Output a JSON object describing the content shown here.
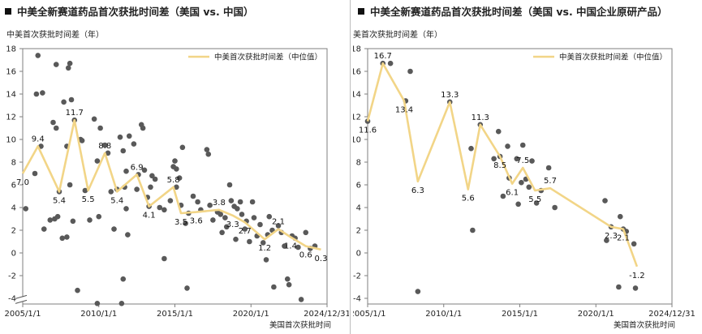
{
  "charts": [
    {
      "title": "中美全新赛道药品首次获批时间差（美国 vs. 中国）",
      "chart_data": {
        "type": "scatter",
        "ylabel": "中美首次获批时间差（年）",
        "xlabel": "美国首次获批时间",
        "y_ticks": [
          -4,
          -2,
          0,
          2,
          4,
          6,
          8,
          10,
          12,
          14,
          16,
          18
        ],
        "ylim": [
          -4.5,
          18
        ],
        "axis_break": true,
        "x_tick_labels": [
          "2005/1/1",
          "2010/1/1",
          "2015/1/1",
          "2020/1/1",
          "2024/12/31"
        ],
        "x_tick_values": [
          2005.0,
          2010.0,
          2015.0,
          2020.0,
          2025.0
        ],
        "xlim": [
          2005.0,
          2025.0
        ],
        "legend": "中美首次获批时间差（中位值）",
        "legend_position": "top-right",
        "colors": {
          "points": "#595959",
          "median": "#f2d587"
        },
        "median_series": [
          {
            "x": 2005.0,
            "y": 7.0,
            "label": "7.0"
          },
          {
            "x": 2006.0,
            "y": 9.4,
            "label": "9.4"
          },
          {
            "x": 2007.4,
            "y": 5.4,
            "label": "5.4"
          },
          {
            "x": 2008.4,
            "y": 11.7,
            "label": "11.7"
          },
          {
            "x": 2009.3,
            "y": 5.5,
            "label": "5.5"
          },
          {
            "x": 2010.4,
            "y": 8.8,
            "label": "8.8"
          },
          {
            "x": 2011.2,
            "y": 5.4,
            "label": "5.4"
          },
          {
            "x": 2012.5,
            "y": 6.9,
            "label": "6.9"
          },
          {
            "x": 2013.3,
            "y": 4.1,
            "label": "4.1"
          },
          {
            "x": 2014.9,
            "y": 5.8,
            "label": "5.8"
          },
          {
            "x": 2015.4,
            "y": 3.5,
            "label": "3.5"
          },
          {
            "x": 2016.4,
            "y": 3.6,
            "label": "3.6"
          },
          {
            "x": 2017.9,
            "y": 3.8,
            "label": "3.8"
          },
          {
            "x": 2018.8,
            "y": 3.3,
            "label": "3.3"
          },
          {
            "x": 2019.6,
            "y": 2.7,
            "label": "2.7"
          },
          {
            "x": 2020.9,
            "y": 1.2,
            "label": "1.2"
          },
          {
            "x": 2021.8,
            "y": 2.1,
            "label": "2.1"
          },
          {
            "x": 2022.6,
            "y": 1.4,
            "label": "1.4"
          },
          {
            "x": 2023.6,
            "y": 0.6,
            "label": "0.6"
          },
          {
            "x": 2024.6,
            "y": 0.3,
            "label": "0.3"
          }
        ],
        "points": [
          {
            "x": 2005.2,
            "y": 3.9
          },
          {
            "x": 2005.8,
            "y": 7.0
          },
          {
            "x": 2006.0,
            "y": 17.4
          },
          {
            "x": 2005.9,
            "y": 14.0
          },
          {
            "x": 2006.3,
            "y": 14.1
          },
          {
            "x": 2006.2,
            "y": 9.4
          },
          {
            "x": 2006.4,
            "y": 2.1
          },
          {
            "x": 2006.8,
            "y": 2.9
          },
          {
            "x": 2007.1,
            "y": 3.0
          },
          {
            "x": 2007.3,
            "y": 3.2
          },
          {
            "x": 2007.2,
            "y": 16.6
          },
          {
            "x": 2007.0,
            "y": 11.5
          },
          {
            "x": 2007.2,
            "y": 11.0
          },
          {
            "x": 2007.4,
            "y": 5.4
          },
          {
            "x": 2007.6,
            "y": 1.3
          },
          {
            "x": 2007.7,
            "y": 13.3
          },
          {
            "x": 2008.0,
            "y": 16.3
          },
          {
            "x": 2008.1,
            "y": 16.7
          },
          {
            "x": 2008.2,
            "y": 13.5
          },
          {
            "x": 2007.9,
            "y": 9.4
          },
          {
            "x": 2007.9,
            "y": 1.4
          },
          {
            "x": 2008.1,
            "y": 6.0
          },
          {
            "x": 2008.3,
            "y": 2.8
          },
          {
            "x": 2008.4,
            "y": 11.7
          },
          {
            "x": 2008.6,
            "y": -3.3
          },
          {
            "x": 2008.8,
            "y": 10.0
          },
          {
            "x": 2008.9,
            "y": 9.9
          },
          {
            "x": 2009.1,
            "y": 5.5
          },
          {
            "x": 2009.4,
            "y": 2.9
          },
          {
            "x": 2009.7,
            "y": 11.8
          },
          {
            "x": 2010.1,
            "y": 11.0
          },
          {
            "x": 2009.9,
            "y": 8.1
          },
          {
            "x": 2010.0,
            "y": 3.2
          },
          {
            "x": 2009.9,
            "y": -4.8
          },
          {
            "x": 2010.4,
            "y": 9.5
          },
          {
            "x": 2010.6,
            "y": 8.8
          },
          {
            "x": 2010.8,
            "y": 5.4
          },
          {
            "x": 2011.2,
            "y": 5.6
          },
          {
            "x": 2011.0,
            "y": 2.1
          },
          {
            "x": 2011.5,
            "y": -5.7
          },
          {
            "x": 2011.4,
            "y": 10.2
          },
          {
            "x": 2011.6,
            "y": 9.0
          },
          {
            "x": 2011.8,
            "y": 7.2
          },
          {
            "x": 2011.7,
            "y": 5.8
          },
          {
            "x": 2011.8,
            "y": 3.9
          },
          {
            "x": 2011.9,
            "y": 1.6
          },
          {
            "x": 2011.6,
            "y": -2.3
          },
          {
            "x": 2012.0,
            "y": 10.3
          },
          {
            "x": 2012.3,
            "y": 9.6
          },
          {
            "x": 2012.5,
            "y": 5.6
          },
          {
            "x": 2012.6,
            "y": 6.9
          },
          {
            "x": 2012.8,
            "y": 11.3
          },
          {
            "x": 2012.9,
            "y": 11.0
          },
          {
            "x": 2013.0,
            "y": 7.3
          },
          {
            "x": 2013.2,
            "y": 4.9
          },
          {
            "x": 2013.3,
            "y": 4.1
          },
          {
            "x": 2013.5,
            "y": 6.8
          },
          {
            "x": 2013.7,
            "y": 6.5
          },
          {
            "x": 2013.4,
            "y": 5.8
          },
          {
            "x": 2014.0,
            "y": 4.0
          },
          {
            "x": 2014.3,
            "y": 3.8
          },
          {
            "x": 2014.7,
            "y": 4.6
          },
          {
            "x": 2014.3,
            "y": -0.5
          },
          {
            "x": 2015.0,
            "y": 8.1
          },
          {
            "x": 2015.1,
            "y": 7.4
          },
          {
            "x": 2015.3,
            "y": 6.6
          },
          {
            "x": 2014.9,
            "y": 7.6
          },
          {
            "x": 2015.1,
            "y": 5.8
          },
          {
            "x": 2015.4,
            "y": 4.2
          },
          {
            "x": 2015.5,
            "y": 9.3
          },
          {
            "x": 2015.7,
            "y": 2.6
          },
          {
            "x": 2015.8,
            "y": -3.1
          },
          {
            "x": 2015.9,
            "y": 3.5
          },
          {
            "x": 2016.2,
            "y": 5.0
          },
          {
            "x": 2016.5,
            "y": 4.5
          },
          {
            "x": 2016.7,
            "y": 3.8
          },
          {
            "x": 2017.1,
            "y": 9.1
          },
          {
            "x": 2017.2,
            "y": 8.7
          },
          {
            "x": 2017.3,
            "y": 4.2
          },
          {
            "x": 2017.5,
            "y": 2.9
          },
          {
            "x": 2017.8,
            "y": 3.6
          },
          {
            "x": 2018.0,
            "y": 3.4
          },
          {
            "x": 2018.1,
            "y": 1.8
          },
          {
            "x": 2018.3,
            "y": 3.1
          },
          {
            "x": 2018.4,
            "y": 2.3
          },
          {
            "x": 2018.6,
            "y": 6.0
          },
          {
            "x": 2018.7,
            "y": 4.6
          },
          {
            "x": 2018.9,
            "y": 4.1
          },
          {
            "x": 2019.0,
            "y": 1.2
          },
          {
            "x": 2019.1,
            "y": 3.9
          },
          {
            "x": 2019.3,
            "y": 4.5
          },
          {
            "x": 2019.4,
            "y": 3.4
          },
          {
            "x": 2019.6,
            "y": 2.1
          },
          {
            "x": 2019.7,
            "y": 2.8
          },
          {
            "x": 2019.9,
            "y": 1.0
          },
          {
            "x": 2020.1,
            "y": 4.5
          },
          {
            "x": 2020.2,
            "y": 3.1
          },
          {
            "x": 2020.4,
            "y": 1.5
          },
          {
            "x": 2020.6,
            "y": 2.5
          },
          {
            "x": 2020.8,
            "y": 0.9
          },
          {
            "x": 2021.0,
            "y": -0.6
          },
          {
            "x": 2021.1,
            "y": 1.6
          },
          {
            "x": 2021.2,
            "y": 3.2
          },
          {
            "x": 2021.4,
            "y": 2.0
          },
          {
            "x": 2021.5,
            "y": -3.0
          },
          {
            "x": 2021.8,
            "y": 2.4
          },
          {
            "x": 2022.0,
            "y": 1.8
          },
          {
            "x": 2022.2,
            "y": 0.6
          },
          {
            "x": 2022.4,
            "y": -2.3
          },
          {
            "x": 2022.5,
            "y": -2.8
          },
          {
            "x": 2022.7,
            "y": 1.5
          },
          {
            "x": 2022.9,
            "y": 1.3
          },
          {
            "x": 2023.1,
            "y": 0.5
          },
          {
            "x": 2023.3,
            "y": -4.1
          },
          {
            "x": 2023.6,
            "y": 1.8
          },
          {
            "x": 2023.9,
            "y": 0.4
          },
          {
            "x": 2024.2,
            "y": 0.6
          }
        ]
      }
    },
    {
      "title": "中美全新赛道药品首次获批时间差（美国 vs. 中国企业原研产品）",
      "chart_data": {
        "type": "scatter",
        "ylabel": "中美首次获批时间差（年）",
        "xlabel": "美国首次获批时间",
        "y_ticks": [
          -4,
          -2,
          0,
          2,
          4,
          6,
          8,
          10,
          12,
          14,
          16,
          18
        ],
        "ylim": [
          -4.5,
          18
        ],
        "axis_break": false,
        "x_tick_labels": [
          "2005/1/1",
          "2010/1/1",
          "2015/1/1",
          "2020/1/1",
          "2024/12/31"
        ],
        "x_tick_values": [
          2005.0,
          2010.0,
          2015.0,
          2020.0,
          2025.0
        ],
        "xlim": [
          2005.0,
          2025.0
        ],
        "legend": "中美首次获批时间差（中位值）",
        "legend_position": "top-right",
        "colors": {
          "points": "#595959",
          "median": "#f2d587"
        },
        "median_series": [
          {
            "x": 2005.0,
            "y": 11.6,
            "label": "11.6"
          },
          {
            "x": 2006.0,
            "y": 16.7,
            "label": "16.7"
          },
          {
            "x": 2007.4,
            "y": 13.4,
            "label": "13.4"
          },
          {
            "x": 2008.3,
            "y": 6.3,
            "label": "6.3"
          },
          {
            "x": 2010.4,
            "y": 13.3,
            "label": "13.3"
          },
          {
            "x": 2011.6,
            "y": 5.6,
            "label": "5.6"
          },
          {
            "x": 2012.4,
            "y": 11.3,
            "label": "11.3"
          },
          {
            "x": 2013.7,
            "y": 8.5,
            "label": "8.5"
          },
          {
            "x": 2014.5,
            "y": 6.1,
            "label": "6.1"
          },
          {
            "x": 2015.2,
            "y": 7.5,
            "label": "7.5"
          },
          {
            "x": 2016.0,
            "y": 5.5,
            "label": "5.5"
          },
          {
            "x": 2017.0,
            "y": 5.7,
            "label": "5.7"
          },
          {
            "x": 2021.0,
            "y": 2.3,
            "label": "2.3"
          },
          {
            "x": 2021.8,
            "y": 2.1,
            "label": "2.1"
          },
          {
            "x": 2022.7,
            "y": -1.2,
            "label": "-1.2"
          }
        ],
        "points": [
          {
            "x": 2005.0,
            "y": 11.6
          },
          {
            "x": 2006.0,
            "y": 16.7
          },
          {
            "x": 2006.5,
            "y": 16.7
          },
          {
            "x": 2007.5,
            "y": 13.4
          },
          {
            "x": 2007.8,
            "y": 16.0
          },
          {
            "x": 2008.3,
            "y": -3.4
          },
          {
            "x": 2010.4,
            "y": 13.3
          },
          {
            "x": 2011.8,
            "y": 9.2
          },
          {
            "x": 2011.9,
            "y": 2.0
          },
          {
            "x": 2012.4,
            "y": 11.3
          },
          {
            "x": 2013.3,
            "y": 8.3
          },
          {
            "x": 2013.6,
            "y": 10.7
          },
          {
            "x": 2013.7,
            "y": 8.5
          },
          {
            "x": 2013.9,
            "y": 5.0
          },
          {
            "x": 2014.2,
            "y": 9.4
          },
          {
            "x": 2014.3,
            "y": 6.6
          },
          {
            "x": 2014.8,
            "y": 8.3
          },
          {
            "x": 2014.9,
            "y": 4.3
          },
          {
            "x": 2015.1,
            "y": 6.2
          },
          {
            "x": 2015.2,
            "y": 9.5
          },
          {
            "x": 2015.4,
            "y": 6.5
          },
          {
            "x": 2015.6,
            "y": 5.8
          },
          {
            "x": 2015.8,
            "y": 8.1
          },
          {
            "x": 2016.1,
            "y": 4.4
          },
          {
            "x": 2016.4,
            "y": 5.5
          },
          {
            "x": 2016.9,
            "y": 7.5
          },
          {
            "x": 2017.3,
            "y": 4.0
          },
          {
            "x": 2020.6,
            "y": 4.6
          },
          {
            "x": 2020.7,
            "y": 1.1
          },
          {
            "x": 2021.0,
            "y": 2.3
          },
          {
            "x": 2021.5,
            "y": -3.0
          },
          {
            "x": 2021.6,
            "y": 3.2
          },
          {
            "x": 2021.8,
            "y": 2.1
          },
          {
            "x": 2022.0,
            "y": 1.9
          },
          {
            "x": 2022.5,
            "y": 0.8
          },
          {
            "x": 2022.6,
            "y": -3.1
          }
        ]
      }
    }
  ]
}
